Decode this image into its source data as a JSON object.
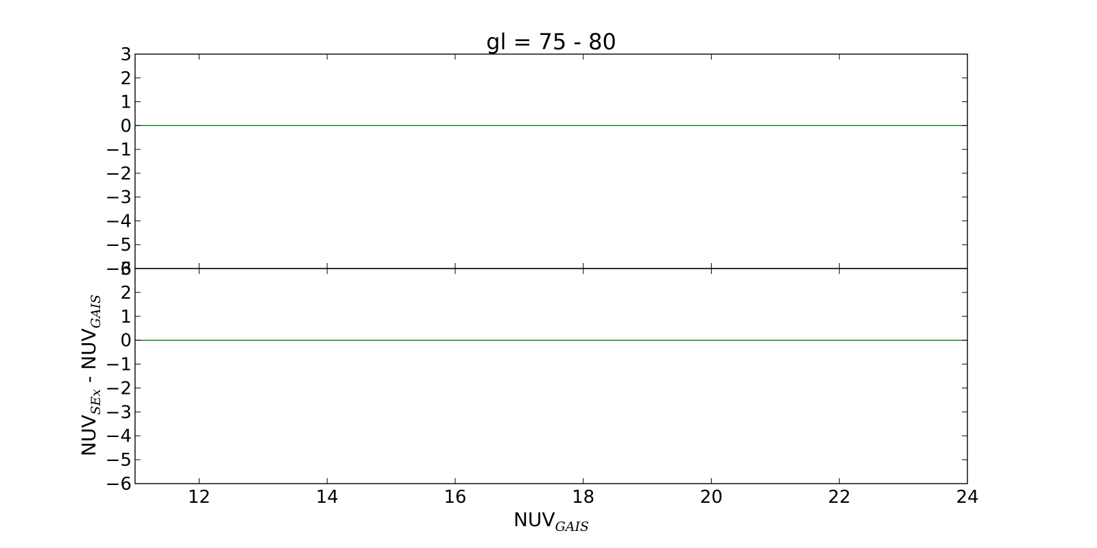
{
  "chart_data": {
    "type": "line",
    "title": "gl = 75 - 80",
    "xlabel": {
      "main": "NUV",
      "sub": "GAIS"
    },
    "ylabel": {
      "main1": "NUV",
      "sub1": "SEx",
      "sep": " - ",
      "main2": "NUV",
      "sub2": "GAIS"
    },
    "xlim": [
      11,
      24
    ],
    "x_ticks": [
      12,
      14,
      16,
      18,
      20,
      22,
      24
    ],
    "grid": false,
    "colors": {
      "reference_line": "#008000",
      "axes": "#000000"
    },
    "panels": [
      {
        "name": "top",
        "ylim": [
          -6,
          3
        ],
        "y_ticks": [
          3,
          2,
          1,
          0,
          -1,
          -2,
          -3,
          -4,
          -5,
          -6
        ],
        "series": [
          {
            "x": [
              11,
              24
            ],
            "y": [
              0,
              0
            ]
          }
        ]
      },
      {
        "name": "bottom",
        "ylim": [
          -6,
          3
        ],
        "y_ticks": [
          3,
          2,
          1,
          0,
          -1,
          -2,
          -3,
          -4,
          -5,
          -6
        ],
        "series": [
          {
            "x": [
              11,
              24
            ],
            "y": [
              0,
              0
            ]
          }
        ]
      }
    ]
  }
}
